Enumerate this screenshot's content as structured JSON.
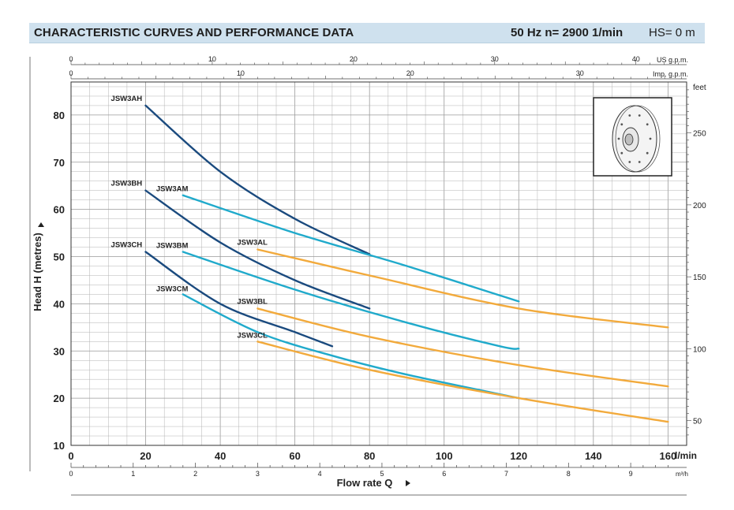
{
  "header": {
    "title": "CHARACTERISTIC CURVES AND PERFORMANCE DATA",
    "speed": "50 Hz    n= 2900  1/min",
    "hs": "HS= 0 m"
  },
  "colors": {
    "header_bg": "#cfe1ee",
    "high": "#1a4a7e",
    "medium": "#20aacb",
    "low": "#f2aa3c",
    "grid": "#b3b3b3"
  },
  "chart_data": {
    "type": "line",
    "xlabel": "Flow rate Q",
    "ylabel": "Head H (metres)",
    "x_unit": "l/min",
    "xlim": [
      0,
      165
    ],
    "ylim": [
      10,
      87
    ],
    "grid": true,
    "x_ticks": [
      0,
      20,
      40,
      60,
      80,
      100,
      120,
      140,
      160
    ],
    "y_ticks": [
      10,
      20,
      30,
      40,
      50,
      60,
      70,
      80
    ],
    "top_axes": [
      {
        "unit": "US g.p.m.",
        "ticks": [
          0,
          10,
          20,
          30,
          40
        ],
        "lpm_per_unit": 3.785
      },
      {
        "unit": "Imp. g.p.m.",
        "ticks": [
          0,
          10,
          20,
          30
        ],
        "lpm_per_unit": 4.546
      }
    ],
    "bottom_axis": {
      "unit": "m³/h",
      "ticks": [
        0,
        1,
        2,
        3,
        4,
        5,
        6,
        7,
        8,
        9
      ],
      "lpm_per_unit": 16.667
    },
    "right_axis": {
      "unit": "feet",
      "ticks": [
        50,
        100,
        150,
        200,
        250
      ],
      "m_per_unit": 0.3048
    },
    "series": [
      {
        "name": "JSW3AH",
        "group": "high",
        "x": [
          20,
          40,
          60,
          80
        ],
        "y": [
          82,
          68,
          58,
          50.5
        ]
      },
      {
        "name": "JSW3BH",
        "group": "high",
        "x": [
          20,
          40,
          60,
          80
        ],
        "y": [
          64,
          53,
          45,
          39
        ]
      },
      {
        "name": "JSW3CH",
        "group": "high",
        "x": [
          20,
          40,
          60,
          70
        ],
        "y": [
          51,
          40,
          34,
          31
        ]
      },
      {
        "name": "JSW3AM",
        "group": "medium",
        "x": [
          30,
          60,
          90,
          120
        ],
        "y": [
          63,
          55,
          48,
          40.5
        ]
      },
      {
        "name": "JSW3BM",
        "group": "medium",
        "x": [
          30,
          60,
          90,
          115,
          120
        ],
        "y": [
          51,
          43,
          36,
          31,
          30.5
        ]
      },
      {
        "name": "JSW3CM",
        "group": "medium",
        "x": [
          30,
          50,
          70,
          90,
          120
        ],
        "y": [
          42,
          34,
          29,
          25,
          20
        ]
      },
      {
        "name": "JSW3AL",
        "group": "low",
        "x": [
          50,
          80,
          120,
          160
        ],
        "y": [
          51.5,
          46,
          39,
          35
        ]
      },
      {
        "name": "JSW3BL",
        "group": "low",
        "x": [
          50,
          80,
          120,
          160
        ],
        "y": [
          39,
          33,
          27,
          22.5
        ]
      },
      {
        "name": "JSW3CL",
        "group": "low",
        "x": [
          50,
          80,
          120,
          160
        ],
        "y": [
          32,
          26,
          20,
          15
        ]
      }
    ],
    "curve_labels": [
      {
        "series": "JSW3AH",
        "text": "JSW3AH"
      },
      {
        "series": "JSW3BH",
        "text": "JSW3BH"
      },
      {
        "series": "JSW3CH",
        "text": "JSW3CH"
      },
      {
        "series": "JSW3AM",
        "text": "JSW3AM"
      },
      {
        "series": "JSW3BM",
        "text": "JSW3BM"
      },
      {
        "series": "JSW3CM",
        "text": "JSW3CM"
      },
      {
        "series": "JSW3AL",
        "text": "JSW3AL"
      },
      {
        "series": "JSW3BL",
        "text": "JSW3BL"
      },
      {
        "series": "JSW3CL",
        "text": "JSW3CL"
      }
    ]
  },
  "impeller": {
    "icon": "impeller-drawing-icon"
  }
}
